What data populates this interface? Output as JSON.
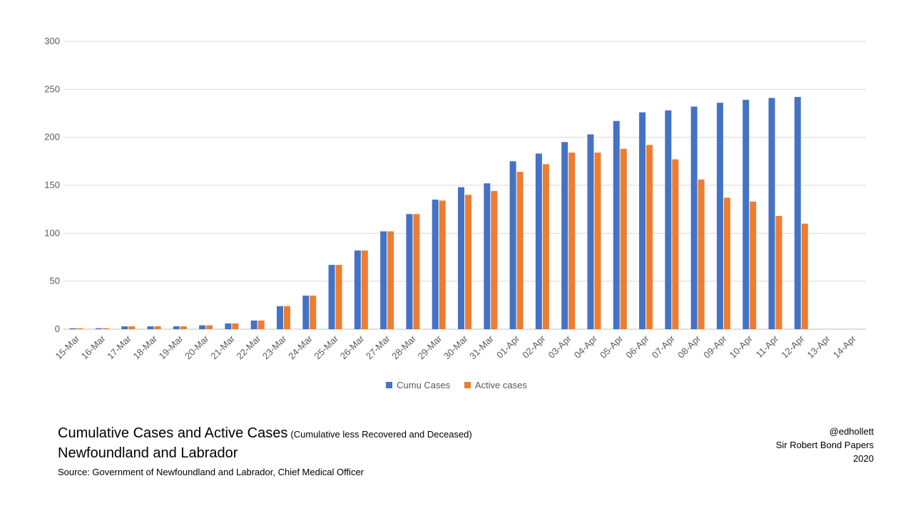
{
  "chart_data": {
    "type": "bar",
    "categories": [
      "15-Mar",
      "16-Mar",
      "17-Mar",
      "18-Mar",
      "19-Mar",
      "20-Mar",
      "21-Mar",
      "22-Mar",
      "23-Mar",
      "24-Mar",
      "25-Mar",
      "26-Mar",
      "27-Mar",
      "28-Mar",
      "29-Mar",
      "30-Mar",
      "31-Mar",
      "01-Apr",
      "02-Apr",
      "03-Apr",
      "04-Apr",
      "05-Apr",
      "06-Apr",
      "07-Apr",
      "08-Apr",
      "09-Apr",
      "10-Apr",
      "11-Apr",
      "12-Apr",
      "13-Apr",
      "14-Apr"
    ],
    "series": [
      {
        "name": "Cumu Cases",
        "color": "#4472C4",
        "values": [
          1,
          1,
          3,
          3,
          3,
          4,
          6,
          9,
          24,
          35,
          67,
          82,
          102,
          120,
          135,
          148,
          152,
          175,
          183,
          195,
          203,
          217,
          226,
          228,
          232,
          236,
          239,
          241,
          242,
          null,
          null
        ]
      },
      {
        "name": "Active cases",
        "color": "#ED7D31",
        "values": [
          1,
          1,
          3,
          3,
          3,
          4,
          6,
          9,
          24,
          35,
          67,
          82,
          102,
          120,
          134,
          140,
          144,
          164,
          172,
          184,
          184,
          188,
          192,
          177,
          156,
          137,
          133,
          118,
          110,
          null,
          null
        ]
      }
    ],
    "ylim": [
      0,
      300
    ],
    "yticks": [
      "0",
      "50",
      "100",
      "150",
      "200",
      "250",
      "300"
    ],
    "grid": true,
    "legend_position": "bottom"
  },
  "caption": {
    "title": "Cumulative Cases and Active Cases",
    "title_note": "(Cumulative less Recovered and Deceased)",
    "region": "Newfoundland and Labrador",
    "source": "Source:  Government of Newfoundland  and Labrador, Chief Medical Officer"
  },
  "credits": {
    "handle": "@edhollett",
    "publication": "Sir Robert Bond Papers",
    "year": "2020"
  }
}
